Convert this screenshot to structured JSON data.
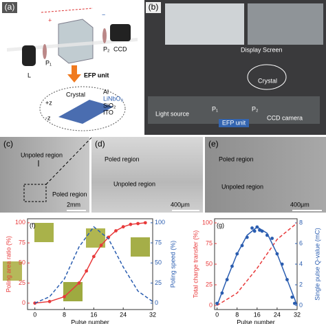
{
  "panels": {
    "a": {
      "label": "(a)",
      "plus": "+",
      "minus": "−",
      "p2": "P₂",
      "ccd": "CCD",
      "l": "L",
      "p1": "P₁",
      "efp": "EFP unit",
      "crystal": "Crystal",
      "al": "Al",
      "linbo3": "LiNbO₃",
      "sio2": "SiO₂",
      "ito": "ITO",
      "pz": "+z",
      "mz": "-z"
    },
    "b": {
      "label": "(b)",
      "display": "Display Screen",
      "crystal": "Crystal",
      "light": "Light source",
      "p1": "P₁",
      "p2": "P₂",
      "efp": "EFP unit",
      "ccd": "CCD camera"
    },
    "c": {
      "label": "(c)",
      "unpoled": "Unpoled region",
      "poled": "Poled region",
      "scale": "2mm"
    },
    "d": {
      "label": "(d)",
      "poled": "Poled region",
      "unpoled": "Unpoled region",
      "scale": "400μm"
    },
    "e": {
      "label": "(e)",
      "poled": "Poled region",
      "unpoled": "Unpoled region",
      "scale": "400μm"
    }
  },
  "chart_data": [
    {
      "type": "line",
      "label": "(f)",
      "xlabel": "Pulse number",
      "ylabel": "Poling area ratio (%)",
      "y2label": "Poling speed (%)",
      "ycolor": "#e8393a",
      "y2color": "#2a5db0",
      "xlim": [
        -2,
        32
      ],
      "xticks": [
        0,
        8,
        16,
        24,
        32
      ],
      "ylim": [
        -8,
        105
      ],
      "yticks": [
        0,
        25,
        50,
        75,
        100
      ],
      "y2lim": [
        -8,
        105
      ],
      "y2ticks": [
        0,
        25,
        50,
        75,
        100
      ],
      "series": [
        {
          "color": "#e8393a",
          "marker": true,
          "line": true,
          "dash": false,
          "x": [
            0,
            4,
            8,
            12,
            14,
            16,
            18,
            20,
            22,
            24,
            26,
            28,
            30
          ],
          "values": [
            0,
            2,
            8,
            25,
            40,
            58,
            72,
            82,
            90,
            95,
            98,
            99,
            100
          ]
        },
        {
          "color": "#2a5db0",
          "axis": "y2",
          "marker": false,
          "line": true,
          "dash": true,
          "x": [
            0,
            4,
            8,
            12,
            16,
            20,
            24,
            28,
            32
          ],
          "values": [
            0,
            8,
            30,
            70,
            95,
            80,
            45,
            15,
            2
          ]
        }
      ]
    },
    {
      "type": "line",
      "label": "(g)",
      "xlabel": "Pulse number",
      "ylabel": "Total charge transfer (%)",
      "y2label": "Single pulse Q-value (mC)",
      "ycolor": "#e8393a",
      "y2color": "#2a5db0",
      "xlim": [
        -1,
        32
      ],
      "xticks": [
        0,
        8,
        16,
        24,
        32
      ],
      "ylim": [
        -5,
        105
      ],
      "yticks": [
        0,
        25,
        50,
        75,
        100
      ],
      "y2lim": [
        -0.4,
        8.4
      ],
      "y2ticks": [
        0,
        2,
        4,
        6,
        8
      ],
      "series": [
        {
          "color": "#e8393a",
          "marker": false,
          "line": true,
          "dash": true,
          "x": [
            0,
            8,
            16,
            24,
            32
          ],
          "values": [
            0,
            15,
            45,
            80,
            100
          ]
        },
        {
          "color": "#2a5db0",
          "axis": "y2",
          "marker": true,
          "line": false,
          "dash": false,
          "x": [
            0,
            2,
            4,
            6,
            8,
            10,
            12,
            14,
            15,
            16,
            17,
            18,
            20,
            22,
            24,
            26,
            28,
            30,
            31
          ],
          "values": [
            0.2,
            1.2,
            2.5,
            3.8,
            5,
            5.8,
            6.6,
            7.5,
            7.2,
            7.6,
            7.3,
            7.2,
            6.8,
            6.5,
            5,
            4,
            2.5,
            0.8,
            0.2
          ]
        },
        {
          "color": "#2a5db0",
          "axis": "y2",
          "marker": false,
          "line": true,
          "dash": false,
          "x": [
            0,
            4,
            8,
            12,
            16,
            20,
            24,
            28,
            32
          ],
          "values": [
            0,
            2.6,
            5,
            6.8,
            7.6,
            7,
            5,
            2.5,
            0
          ]
        }
      ]
    }
  ]
}
